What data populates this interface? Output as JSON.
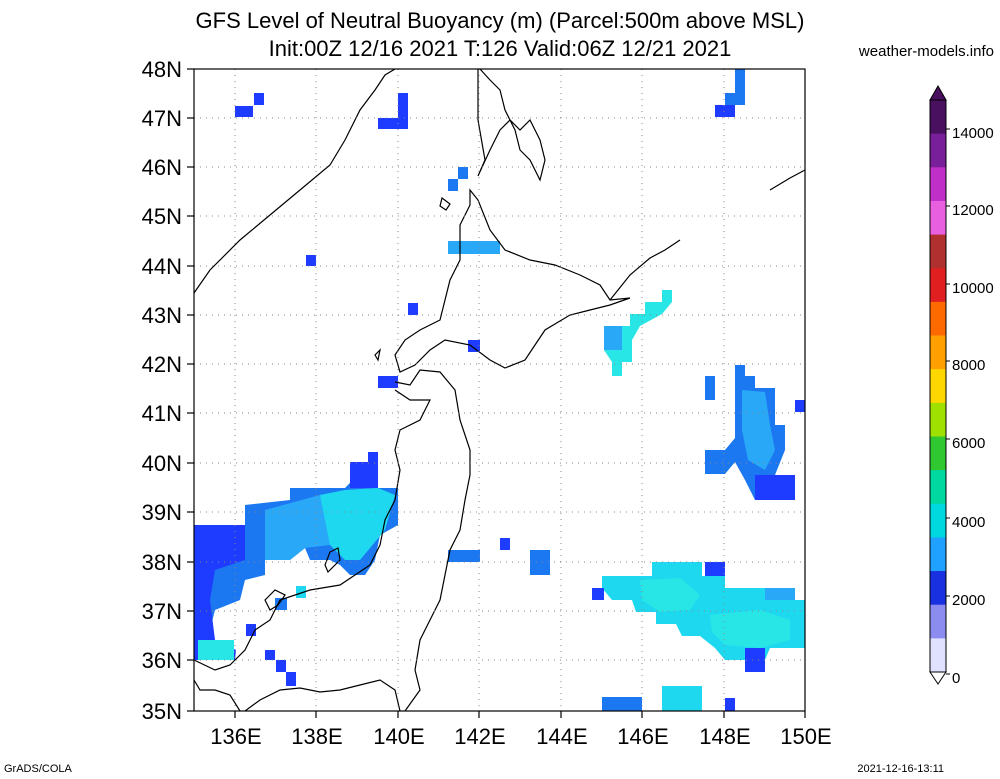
{
  "header": {
    "title_line1": "GFS Level of Neutral Buoyancy (m) (Parcel:500m above MSL)",
    "title_line2": "Init:00Z 12/16 2021 T:126 Valid:06Z 12/21 2021",
    "credit": "weather-models.info"
  },
  "footer": {
    "left": "GrADS/COLA",
    "right": "2021-12-16-13:11"
  },
  "axes": {
    "lat_labels": [
      "48N",
      "47N",
      "46N",
      "45N",
      "44N",
      "43N",
      "42N",
      "41N",
      "40N",
      "39N",
      "38N",
      "37N",
      "36N",
      "35N"
    ],
    "lon_labels": [
      "136E",
      "138E",
      "140E",
      "142E",
      "144E",
      "146E",
      "148E",
      "150E"
    ]
  },
  "colorbar": {
    "labels": [
      "14000",
      "12000",
      "10000",
      "8000",
      "6000",
      "4000",
      "2000",
      "0"
    ],
    "colors": [
      "#4a1060",
      "#7a1f9a",
      "#c030c8",
      "#e860e0",
      "#b03030",
      "#e02020",
      "#ff6a00",
      "#ffa000",
      "#ffd700",
      "#a0e000",
      "#30c830",
      "#00d8a0",
      "#00d8e0",
      "#20a0ff",
      "#1830e0",
      "#8c8cf0",
      "#e0e0ff"
    ]
  },
  "colors": {
    "blue_dark": "#1e3cff",
    "blue_mid": "#1c78f0",
    "blue_light": "#2aa8f8",
    "cyan": "#1ed8f0",
    "cyan_light": "#28e6e6"
  }
}
